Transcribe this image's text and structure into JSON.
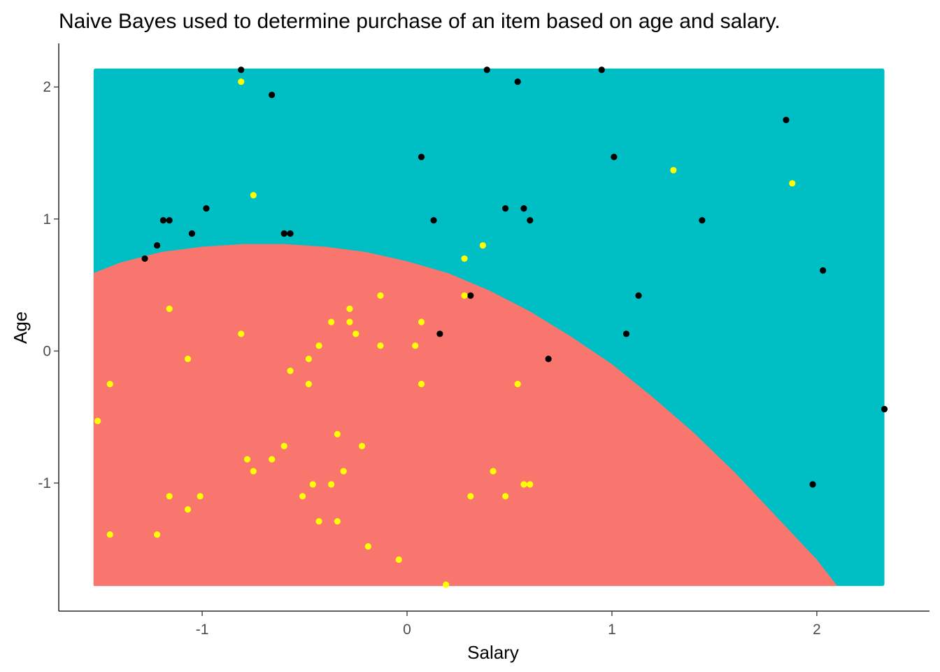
{
  "chart_data": {
    "type": "scatter",
    "title": "Naive Bayes used to determine purchase of an item based on age and salary.",
    "xlabel": "Salary",
    "ylabel": "Age",
    "xlim": [
      -1.7,
      2.55
    ],
    "ylim": [
      -1.97,
      2.33
    ],
    "x_ticks": [
      -1,
      0,
      1,
      2
    ],
    "y_ticks": [
      -1,
      0,
      1,
      2
    ],
    "x_tick_labels": [
      "-1",
      "0",
      "1",
      "2"
    ],
    "y_tick_labels": [
      "-1",
      "0",
      "1",
      "2"
    ],
    "grid": false,
    "legend": "none",
    "region_grid_extent": {
      "x": [
        -1.53,
        2.33
      ],
      "y": [
        -1.78,
        2.14
      ]
    },
    "regions": [
      {
        "class": "0",
        "color": "#F8766D"
      },
      {
        "class": "1",
        "color": "#00BFC4"
      }
    ],
    "decision_boundary": [
      [
        -1.53,
        0.59
      ],
      [
        -1.4,
        0.67
      ],
      [
        -1.2,
        0.75
      ],
      [
        -1.0,
        0.79
      ],
      [
        -0.8,
        0.81
      ],
      [
        -0.6,
        0.81
      ],
      [
        -0.4,
        0.79
      ],
      [
        -0.2,
        0.75
      ],
      [
        0.0,
        0.68
      ],
      [
        0.2,
        0.59
      ],
      [
        0.4,
        0.46
      ],
      [
        0.6,
        0.3
      ],
      [
        0.8,
        0.11
      ],
      [
        1.0,
        -0.1
      ],
      [
        1.2,
        -0.35
      ],
      [
        1.4,
        -0.62
      ],
      [
        1.6,
        -0.92
      ],
      [
        1.8,
        -1.25
      ],
      [
        2.0,
        -1.58
      ],
      [
        2.1,
        -1.78
      ]
    ],
    "series": [
      {
        "name": "",
        "color": "#000000",
        "points": [
          [
            -0.81,
            2.13
          ],
          [
            -0.66,
            1.94
          ],
          [
            0.39,
            2.13
          ],
          [
            0.54,
            2.04
          ],
          [
            0.95,
            2.13
          ],
          [
            1.85,
            1.75
          ],
          [
            0.07,
            1.47
          ],
          [
            1.01,
            1.47
          ],
          [
            -0.98,
            1.08
          ],
          [
            0.48,
            1.08
          ],
          [
            0.57,
            1.08
          ],
          [
            -1.19,
            0.99
          ],
          [
            -1.16,
            0.99
          ],
          [
            0.13,
            0.99
          ],
          [
            0.6,
            0.99
          ],
          [
            1.44,
            0.99
          ],
          [
            -1.05,
            0.89
          ],
          [
            -0.6,
            0.89
          ],
          [
            -0.57,
            0.89
          ],
          [
            -1.22,
            0.8
          ],
          [
            -1.28,
            0.7
          ],
          [
            2.03,
            0.61
          ],
          [
            0.31,
            0.42
          ],
          [
            1.13,
            0.42
          ],
          [
            0.16,
            0.13
          ],
          [
            1.07,
            0.13
          ],
          [
            0.69,
            -0.06
          ],
          [
            2.33,
            -0.44
          ],
          [
            1.98,
            -1.01
          ]
        ]
      },
      {
        "name": "",
        "color": "#FFFF00",
        "points": [
          [
            -0.81,
            2.04
          ],
          [
            -0.75,
            1.18
          ],
          [
            1.3,
            1.37
          ],
          [
            1.88,
            1.27
          ],
          [
            0.37,
            0.8
          ],
          [
            0.28,
            0.7
          ],
          [
            0.28,
            0.42
          ],
          [
            -0.13,
            0.42
          ],
          [
            -1.16,
            0.32
          ],
          [
            -0.28,
            0.32
          ],
          [
            -0.37,
            0.22
          ],
          [
            -0.28,
            0.22
          ],
          [
            0.07,
            0.22
          ],
          [
            -0.81,
            0.13
          ],
          [
            -0.25,
            0.13
          ],
          [
            -0.43,
            0.04
          ],
          [
            -0.13,
            0.04
          ],
          [
            0.04,
            0.04
          ],
          [
            -1.07,
            -0.06
          ],
          [
            -0.48,
            -0.06
          ],
          [
            -0.57,
            -0.15
          ],
          [
            -1.45,
            -0.25
          ],
          [
            -0.48,
            -0.25
          ],
          [
            0.07,
            -0.25
          ],
          [
            0.54,
            -0.25
          ],
          [
            -1.51,
            -0.53
          ],
          [
            -0.34,
            -0.63
          ],
          [
            -0.6,
            -0.72
          ],
          [
            -0.22,
            -0.72
          ],
          [
            -0.78,
            -0.82
          ],
          [
            -0.66,
            -0.82
          ],
          [
            -0.75,
            -0.91
          ],
          [
            -0.31,
            -0.91
          ],
          [
            0.42,
            -0.91
          ],
          [
            -0.46,
            -1.01
          ],
          [
            -0.37,
            -1.01
          ],
          [
            0.57,
            -1.01
          ],
          [
            0.6,
            -1.01
          ],
          [
            -1.16,
            -1.1
          ],
          [
            -1.01,
            -1.1
          ],
          [
            -0.51,
            -1.1
          ],
          [
            0.31,
            -1.1
          ],
          [
            0.48,
            -1.1
          ],
          [
            -1.07,
            -1.2
          ],
          [
            -0.43,
            -1.29
          ],
          [
            -0.34,
            -1.29
          ],
          [
            -1.45,
            -1.39
          ],
          [
            -1.22,
            -1.39
          ],
          [
            -0.19,
            -1.48
          ],
          [
            -0.04,
            -1.58
          ],
          [
            0.19,
            -1.77
          ]
        ]
      }
    ]
  }
}
